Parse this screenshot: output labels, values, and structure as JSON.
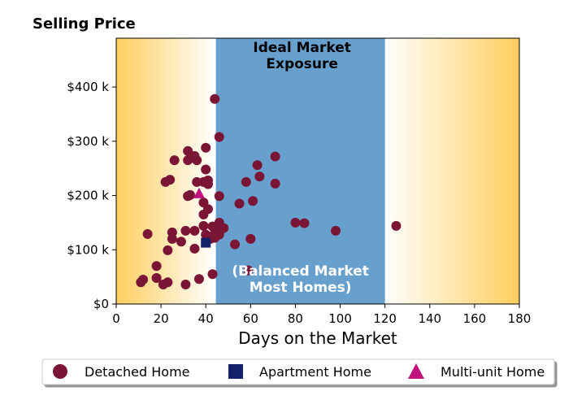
{
  "chart_data": {
    "type": "scatter",
    "title": "",
    "ylabel": "Selling Price",
    "xlabel": "Days on the Market",
    "xlim": [
      0,
      180
    ],
    "ylim": [
      0,
      490
    ],
    "x_ticks": [
      0,
      20,
      40,
      60,
      80,
      100,
      120,
      140,
      160,
      180
    ],
    "x_tick_labels": [
      "0",
      "20",
      "40",
      "60",
      "80",
      "100",
      "120",
      "140",
      "160",
      "180"
    ],
    "y_ticks": [
      0,
      100,
      200,
      300,
      400
    ],
    "y_tick_labels": [
      "$0",
      "$100 k",
      "$200 k",
      "$300 k",
      "$400 k"
    ],
    "grid": false,
    "legend_position": "bottom",
    "regions": [
      {
        "x_start": 44.5,
        "x_end": 120,
        "color": "#68a0cd",
        "label_top": "Ideal Market\nExposure",
        "label_bottom": "(Balanced Market\nMost Homes)"
      }
    ],
    "series": [
      {
        "name": "Detached Home",
        "marker": "circle",
        "color": "#7b1535",
        "points": [
          [
            44,
            378
          ],
          [
            46,
            308
          ],
          [
            40,
            288
          ],
          [
            32,
            282
          ],
          [
            35,
            273
          ],
          [
            26,
            265
          ],
          [
            32,
            265
          ],
          [
            36,
            265
          ],
          [
            71,
            272
          ],
          [
            63,
            256
          ],
          [
            40,
            248
          ],
          [
            64,
            235
          ],
          [
            24,
            229
          ],
          [
            22,
            225
          ],
          [
            36,
            225
          ],
          [
            39,
            225
          ],
          [
            41,
            228
          ],
          [
            41,
            221
          ],
          [
            58,
            225
          ],
          [
            71,
            222
          ],
          [
            33,
            201
          ],
          [
            32,
            199
          ],
          [
            46,
            199
          ],
          [
            39,
            187
          ],
          [
            61,
            190
          ],
          [
            55,
            185
          ],
          [
            41,
            175
          ],
          [
            39,
            165
          ],
          [
            80,
            150
          ],
          [
            84,
            149
          ],
          [
            125,
            144
          ],
          [
            98,
            135
          ],
          [
            39,
            144
          ],
          [
            43,
            143
          ],
          [
            46,
            150
          ],
          [
            48,
            140
          ],
          [
            44,
            130
          ],
          [
            45,
            133
          ],
          [
            35,
            135
          ],
          [
            31,
            135
          ],
          [
            25,
            132
          ],
          [
            14,
            129
          ],
          [
            25,
            120
          ],
          [
            29,
            115
          ],
          [
            40,
            128
          ],
          [
            42,
            120
          ],
          [
            44,
            122
          ],
          [
            46,
            128
          ],
          [
            53,
            110
          ],
          [
            60,
            120
          ],
          [
            35,
            102
          ],
          [
            23,
            99
          ],
          [
            18,
            70
          ],
          [
            59,
            62
          ],
          [
            18,
            48
          ],
          [
            43,
            55
          ],
          [
            37,
            46
          ],
          [
            12,
            45
          ],
          [
            11,
            40
          ],
          [
            23,
            40
          ],
          [
            21,
            36
          ],
          [
            31,
            36
          ]
        ]
      },
      {
        "name": "Apartment Home",
        "marker": "square",
        "color": "#13206a",
        "points": [
          [
            40,
            113
          ]
        ]
      },
      {
        "name": "Multi-unit Home",
        "marker": "triangle",
        "color": "#c0117e",
        "points": [
          [
            37,
            204
          ]
        ]
      }
    ]
  }
}
